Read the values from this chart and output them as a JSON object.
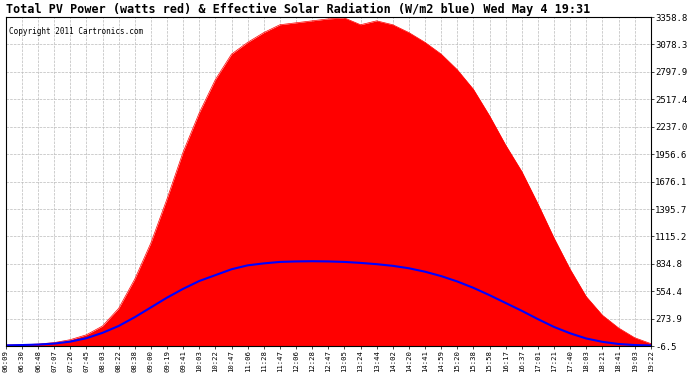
{
  "title": "Total PV Power (watts red) & Effective Solar Radiation (W/m2 blue) Wed May 4 19:31",
  "copyright": "Copyright 2011 Cartronics.com",
  "yticks": [
    3358.8,
    3078.3,
    2797.9,
    2517.4,
    2237.0,
    1956.6,
    1676.1,
    1395.7,
    1115.2,
    834.8,
    554.4,
    273.9,
    -6.5
  ],
  "ylim": [
    -6.5,
    3358.8
  ],
  "bg_color": "#ffffff",
  "grid_color": "#bbbbbb",
  "red_color": "#ff0000",
  "blue_color": "#0000ff",
  "x_labels": [
    "06:09",
    "06:30",
    "06:48",
    "07:07",
    "07:26",
    "07:45",
    "08:03",
    "08:22",
    "08:38",
    "09:00",
    "09:19",
    "09:41",
    "10:03",
    "10:22",
    "10:47",
    "11:06",
    "11:28",
    "11:47",
    "12:06",
    "12:28",
    "12:47",
    "13:05",
    "13:24",
    "13:44",
    "14:02",
    "14:20",
    "14:41",
    "14:59",
    "15:20",
    "15:38",
    "15:58",
    "16:17",
    "16:37",
    "17:01",
    "17:21",
    "17:40",
    "18:03",
    "18:21",
    "18:41",
    "19:03",
    "19:22"
  ],
  "pv_power": [
    5,
    8,
    15,
    30,
    60,
    110,
    200,
    380,
    680,
    1050,
    1500,
    1980,
    2380,
    2720,
    2980,
    3100,
    3200,
    3280,
    3300,
    3320,
    3340,
    3350,
    3280,
    3320,
    3280,
    3200,
    3100,
    2980,
    2820,
    2620,
    2350,
    2050,
    1780,
    1450,
    1100,
    780,
    500,
    310,
    180,
    80,
    20
  ],
  "solar_rad": [
    2,
    5,
    10,
    20,
    40,
    75,
    130,
    200,
    290,
    390,
    490,
    580,
    660,
    720,
    780,
    820,
    840,
    855,
    860,
    862,
    860,
    855,
    845,
    832,
    815,
    790,
    755,
    710,
    655,
    590,
    515,
    435,
    355,
    270,
    190,
    125,
    72,
    38,
    16,
    5,
    1
  ],
  "figsize": [
    6.9,
    3.75
  ],
  "dpi": 100
}
